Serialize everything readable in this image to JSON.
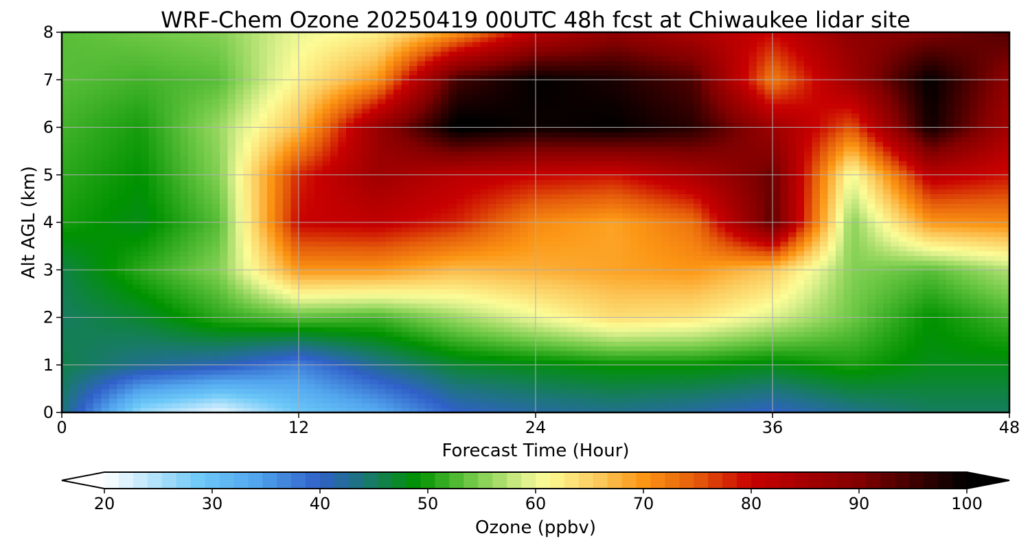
{
  "chart_data": {
    "type": "heatmap",
    "title": "WRF-Chem Ozone  20250419 00UTC 48h fcst at Chiwaukee lidar site",
    "xlabel": "Forecast Time (Hour)",
    "ylabel": "Alt AGL (km)",
    "xlim": [
      0,
      48
    ],
    "ylim": [
      0,
      8
    ],
    "xticks": [
      0,
      12,
      24,
      36,
      48
    ],
    "yticks": [
      0,
      1,
      2,
      3,
      4,
      5,
      6,
      7,
      8
    ],
    "grid": true,
    "x": [
      0,
      4,
      8,
      12,
      16,
      20,
      24,
      28,
      32,
      36,
      40,
      44,
      48
    ],
    "y": [
      0,
      1,
      2,
      3,
      4,
      5,
      6,
      7,
      8
    ],
    "z": [
      [
        44,
        26,
        21,
        29,
        33,
        40,
        42,
        43,
        42,
        40,
        43,
        45,
        45
      ],
      [
        46,
        43,
        41,
        37,
        43,
        47,
        48,
        49,
        49,
        48,
        50,
        48,
        48
      ],
      [
        45,
        47,
        51,
        53,
        52,
        56,
        60,
        64,
        63,
        59,
        54,
        49,
        52
      ],
      [
        46,
        51,
        55,
        70,
        70,
        67,
        68,
        69,
        70,
        66,
        55,
        53,
        57
      ],
      [
        50,
        48,
        53,
        80,
        81,
        78,
        71,
        69,
        73,
        93,
        55,
        70,
        71
      ],
      [
        51,
        49,
        55,
        78,
        86,
        82,
        80,
        79,
        84,
        92,
        60,
        82,
        79
      ],
      [
        52,
        50,
        56,
        67,
        87,
        101,
        99,
        100,
        97,
        86,
        75,
        99,
        85
      ],
      [
        53,
        52,
        53,
        62,
        70,
        95,
        100,
        98,
        94,
        72,
        86,
        100,
        88
      ],
      [
        53,
        54,
        55,
        60,
        62,
        70,
        82,
        88,
        84,
        80,
        88,
        90,
        94
      ]
    ],
    "colorbar": {
      "label": "Ozone  (ppbv)",
      "min": 20,
      "max": 100,
      "ticks": [
        20,
        30,
        40,
        50,
        60,
        70,
        80,
        90,
        100
      ],
      "extend": "both"
    }
  }
}
